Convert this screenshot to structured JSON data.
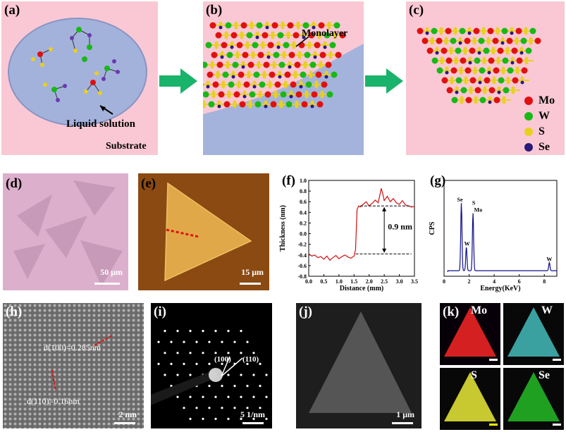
{
  "panels": {
    "a": {
      "label": "(a)",
      "solution": "Liquid solution",
      "substrate": "Substrate"
    },
    "b": {
      "label": "(b)",
      "monolayer": "Monolayer"
    },
    "c": {
      "label": "(c)",
      "legend": [
        {
          "name": "Mo",
          "color": "#e01010"
        },
        {
          "name": "W",
          "color": "#18b818"
        },
        {
          "name": "S",
          "color": "#e8d020"
        },
        {
          "name": "Se",
          "color": "#2a1a7a"
        }
      ]
    },
    "d": {
      "label": "(d)",
      "scale": "50 μm"
    },
    "e": {
      "label": "(e)",
      "scale": "15 μm"
    },
    "f": {
      "label": "(f)",
      "ylabel": "Thickness (nm)",
      "xlabel": "Distance (mm)",
      "annotation": "0.9 nm"
    },
    "g": {
      "label": "(g)",
      "ylabel": "CPS",
      "xlabel": "Energy(KeV)"
    },
    "h": {
      "label": "(h)",
      "spacing1": "d(100)=0.285nm",
      "spacing2": "d(110)=0.16nm",
      "scale": "2 nm"
    },
    "i": {
      "label": "(i)",
      "spot1": "(100)",
      "spot2": "(110)",
      "scale": "5 1/nm"
    },
    "j": {
      "label": "(j)",
      "scale": "1 μm"
    },
    "k": {
      "label": "(k)",
      "maps": [
        "Mo",
        "W",
        "S",
        "Se"
      ]
    }
  },
  "chart_data": [
    {
      "type": "line",
      "title": "",
      "xlabel": "Distance (mm)",
      "ylabel": "Thickness (nm)",
      "xlim": [
        0.0,
        3.5
      ],
      "ylim": [
        -0.8,
        1.0
      ],
      "xticks": [
        "0.0",
        "0.5",
        "1.0",
        "1.5",
        "2.0",
        "2.5",
        "3.0",
        "3.5"
      ],
      "yticks": [
        "-0.8",
        "-0.6",
        "-0.4",
        "-0.2",
        "0.0",
        "0.2",
        "0.4",
        "0.6",
        "0.8",
        "1.0"
      ],
      "x": [
        0.0,
        0.1,
        0.2,
        0.3,
        0.4,
        0.5,
        0.6,
        0.7,
        0.8,
        0.9,
        1.0,
        1.1,
        1.2,
        1.3,
        1.4,
        1.5,
        1.55,
        1.6,
        1.65,
        1.7,
        1.8,
        1.9,
        2.0,
        2.1,
        2.2,
        2.3,
        2.4,
        2.45,
        2.5,
        2.6,
        2.7,
        2.8,
        2.9,
        3.0,
        3.1,
        3.2,
        3.3,
        3.4,
        3.5
      ],
      "y": [
        -0.38,
        -0.42,
        -0.4,
        -0.45,
        -0.43,
        -0.48,
        -0.42,
        -0.5,
        -0.45,
        -0.41,
        -0.47,
        -0.43,
        -0.4,
        -0.44,
        -0.46,
        -0.42,
        -0.3,
        0.45,
        0.52,
        0.5,
        0.55,
        0.6,
        0.52,
        0.57,
        0.63,
        0.58,
        0.85,
        0.75,
        0.62,
        0.7,
        0.6,
        0.66,
        0.58,
        0.55,
        0.62,
        0.54,
        0.52,
        0.5,
        0.51
      ],
      "annotation": "0.9 nm",
      "grid": false
    },
    {
      "type": "line",
      "title": "",
      "xlabel": "Energy(KeV)",
      "ylabel": "CPS",
      "xlim": [
        0,
        9
      ],
      "xticks": [
        "0",
        "2",
        "4",
        "6",
        "8"
      ],
      "peaks": [
        {
          "label": "Se",
          "x": 1.38,
          "height": 1.0
        },
        {
          "label": "W",
          "x": 1.78,
          "height": 0.35
        },
        {
          "label": "S",
          "x": 2.31,
          "height": 0.85
        },
        {
          "label": "Mo",
          "x": 2.42,
          "height": 0.0
        },
        {
          "label": "W",
          "x": 8.4,
          "height": 0.12
        }
      ]
    }
  ]
}
